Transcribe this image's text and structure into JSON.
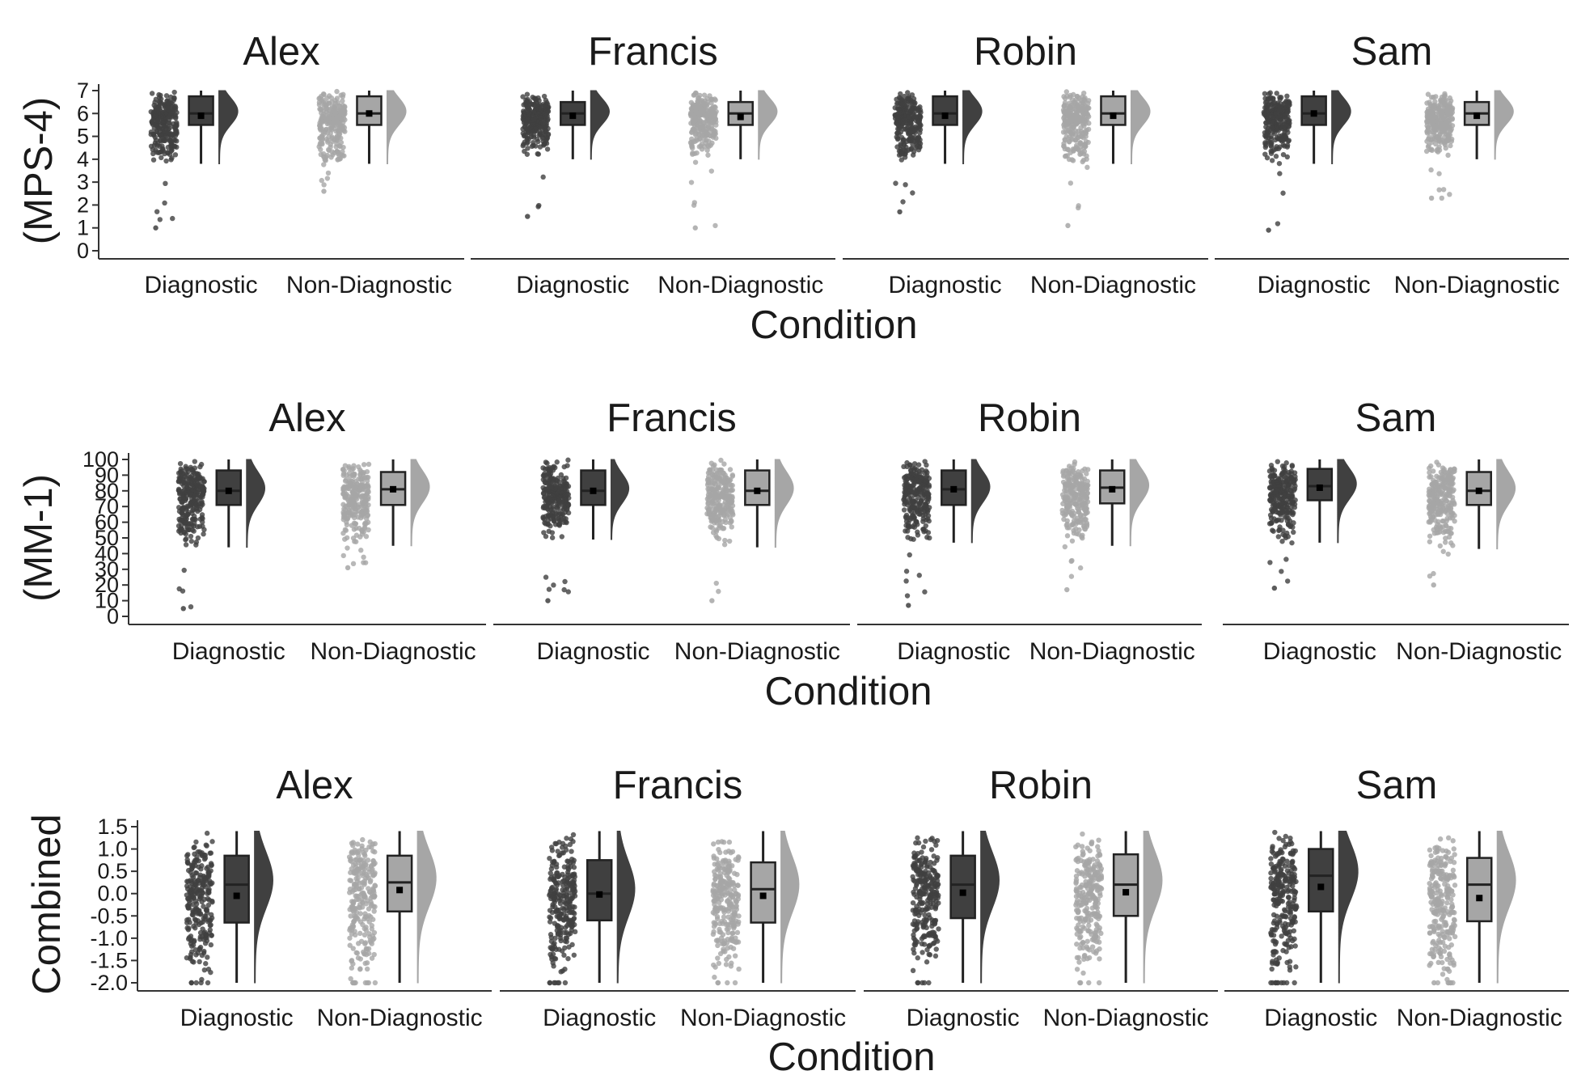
{
  "chart_data": [
    {
      "type": "raincloud",
      "ylabel": "(MPS-4)",
      "xlabel": "Condition",
      "ylim": [
        0,
        7
      ],
      "yticks": [
        0,
        1,
        2,
        3,
        4,
        5,
        6,
        7
      ],
      "yticklabels": [
        "0",
        "1",
        "2",
        "3",
        "4",
        "5",
        "6",
        "7"
      ],
      "categories": [
        "Diagnostic",
        "Non-Diagnostic"
      ],
      "facets": [
        {
          "name": "Alex",
          "groups": [
            {
              "category": "Diagnostic",
              "whisker_low": 3.8,
              "q1": 5.5,
              "median": 6.0,
              "q3": 6.75,
              "whisker_high": 7.0,
              "mean": 5.9,
              "min": 1.0,
              "max": 7.0
            },
            {
              "category": "Non-Diagnostic",
              "whisker_low": 3.8,
              "q1": 5.5,
              "median": 6.0,
              "q3": 6.75,
              "whisker_high": 7.0,
              "mean": 6.0,
              "min": 2.6,
              "max": 7.0
            }
          ]
        },
        {
          "name": "Francis",
          "groups": [
            {
              "category": "Diagnostic",
              "whisker_low": 4.0,
              "q1": 5.5,
              "median": 6.0,
              "q3": 6.5,
              "whisker_high": 7.0,
              "mean": 5.9,
              "min": 1.5,
              "max": 7.0
            },
            {
              "category": "Non-Diagnostic",
              "whisker_low": 4.0,
              "q1": 5.5,
              "median": 6.0,
              "q3": 6.5,
              "whisker_high": 7.0,
              "mean": 5.85,
              "min": 1.0,
              "max": 7.0
            }
          ]
        },
        {
          "name": "Robin",
          "groups": [
            {
              "category": "Diagnostic",
              "whisker_low": 3.8,
              "q1": 5.5,
              "median": 6.0,
              "q3": 6.75,
              "whisker_high": 7.0,
              "mean": 5.9,
              "min": 1.7,
              "max": 7.0
            },
            {
              "category": "Non-Diagnostic",
              "whisker_low": 3.8,
              "q1": 5.5,
              "median": 6.0,
              "q3": 6.75,
              "whisker_high": 7.0,
              "mean": 5.9,
              "min": 1.1,
              "max": 7.0
            }
          ]
        },
        {
          "name": "Sam",
          "groups": [
            {
              "category": "Diagnostic",
              "whisker_low": 3.8,
              "q1": 5.5,
              "median": 6.0,
              "q3": 6.75,
              "whisker_high": 7.0,
              "mean": 6.0,
              "min": 0.9,
              "max": 7.0
            },
            {
              "category": "Non-Diagnostic",
              "whisker_low": 4.0,
              "q1": 5.5,
              "median": 6.0,
              "q3": 6.5,
              "whisker_high": 7.0,
              "mean": 5.9,
              "min": 2.3,
              "max": 7.0
            }
          ]
        }
      ]
    },
    {
      "type": "raincloud",
      "ylabel": "(MM-1)",
      "xlabel": "Condition",
      "ylim": [
        0,
        100
      ],
      "yticks": [
        0,
        10,
        20,
        30,
        40,
        50,
        60,
        70,
        80,
        90,
        100
      ],
      "yticklabels": [
        "0",
        "10",
        "20",
        "30",
        "40",
        "50",
        "60",
        "70",
        "80",
        "90",
        "100"
      ],
      "categories": [
        "Diagnostic",
        "Non-Diagnostic"
      ],
      "facets": [
        {
          "name": "Alex",
          "groups": [
            {
              "category": "Diagnostic",
              "whisker_low": 44,
              "q1": 71,
              "median": 80,
              "q3": 93,
              "whisker_high": 100,
              "mean": 80,
              "min": 5,
              "max": 100
            },
            {
              "category": "Non-Diagnostic",
              "whisker_low": 45,
              "q1": 71,
              "median": 81,
              "q3": 92,
              "whisker_high": 100,
              "mean": 81,
              "min": 31,
              "max": 100
            }
          ]
        },
        {
          "name": "Francis",
          "groups": [
            {
              "category": "Diagnostic",
              "whisker_low": 49,
              "q1": 71,
              "median": 80,
              "q3": 93,
              "whisker_high": 100,
              "mean": 80,
              "min": 10,
              "max": 100
            },
            {
              "category": "Non-Diagnostic",
              "whisker_low": 44,
              "q1": 71,
              "median": 80,
              "q3": 93,
              "whisker_high": 100,
              "mean": 80,
              "min": 10,
              "max": 100
            }
          ]
        },
        {
          "name": "Robin",
          "groups": [
            {
              "category": "Diagnostic",
              "whisker_low": 47,
              "q1": 71,
              "median": 81,
              "q3": 93,
              "whisker_high": 100,
              "mean": 81,
              "min": 7,
              "max": 100
            },
            {
              "category": "Non-Diagnostic",
              "whisker_low": 45,
              "q1": 72,
              "median": 82,
              "q3": 93,
              "whisker_high": 100,
              "mean": 81,
              "min": 17,
              "max": 100
            }
          ]
        },
        {
          "name": "Sam",
          "groups": [
            {
              "category": "Diagnostic",
              "whisker_low": 47,
              "q1": 74,
              "median": 83,
              "q3": 94,
              "whisker_high": 100,
              "mean": 82,
              "min": 18,
              "max": 100
            },
            {
              "category": "Non-Diagnostic",
              "whisker_low": 43,
              "q1": 71,
              "median": 80,
              "q3": 92,
              "whisker_high": 100,
              "mean": 80,
              "min": 20,
              "max": 100
            }
          ]
        }
      ]
    },
    {
      "type": "raincloud",
      "ylabel": "Combined",
      "xlabel": "Condition",
      "ylim": [
        -2.0,
        1.5
      ],
      "yticks": [
        -2.0,
        -1.5,
        -1.0,
        -0.5,
        0.0,
        0.5,
        1.0,
        1.5
      ],
      "yticklabels": [
        "-2.0",
        "-1.5",
        "-1.0",
        "-0.5",
        "0.0",
        "0.5",
        "1.0",
        "1.5"
      ],
      "categories": [
        "Diagnostic",
        "Non-Diagnostic"
      ],
      "facets": [
        {
          "name": "Alex",
          "groups": [
            {
              "category": "Diagnostic",
              "whisker_low": -2.0,
              "q1": -0.65,
              "median": 0.2,
              "q3": 0.85,
              "whisker_high": 1.4,
              "mean": -0.05,
              "min": -2.0,
              "max": 1.4
            },
            {
              "category": "Non-Diagnostic",
              "whisker_low": -2.0,
              "q1": -0.4,
              "median": 0.25,
              "q3": 0.85,
              "whisker_high": 1.4,
              "mean": 0.08,
              "min": -2.0,
              "max": 1.4
            }
          ]
        },
        {
          "name": "Francis",
          "groups": [
            {
              "category": "Diagnostic",
              "whisker_low": -2.0,
              "q1": -0.6,
              "median": 0.0,
              "q3": 0.75,
              "whisker_high": 1.4,
              "mean": -0.02,
              "min": -2.0,
              "max": 1.4
            },
            {
              "category": "Non-Diagnostic",
              "whisker_low": -2.0,
              "q1": -0.65,
              "median": 0.1,
              "q3": 0.7,
              "whisker_high": 1.4,
              "mean": -0.05,
              "min": -2.0,
              "max": 1.4
            }
          ]
        },
        {
          "name": "Robin",
          "groups": [
            {
              "category": "Diagnostic",
              "whisker_low": -2.0,
              "q1": -0.55,
              "median": 0.2,
              "q3": 0.85,
              "whisker_high": 1.4,
              "mean": 0.02,
              "min": -2.0,
              "max": 1.4
            },
            {
              "category": "Non-Diagnostic",
              "whisker_low": -2.0,
              "q1": -0.5,
              "median": 0.2,
              "q3": 0.88,
              "whisker_high": 1.4,
              "mean": 0.03,
              "min": -2.0,
              "max": 1.4
            }
          ]
        },
        {
          "name": "Sam",
          "groups": [
            {
              "category": "Diagnostic",
              "whisker_low": -2.0,
              "q1": -0.4,
              "median": 0.4,
              "q3": 1.0,
              "whisker_high": 1.4,
              "mean": 0.15,
              "min": -2.0,
              "max": 1.4
            },
            {
              "category": "Non-Diagnostic",
              "whisker_low": -2.0,
              "q1": -0.62,
              "median": 0.2,
              "q3": 0.8,
              "whisker_high": 1.4,
              "mean": -0.1,
              "min": -2.0,
              "max": 1.4
            }
          ]
        }
      ]
    }
  ],
  "colors": {
    "Diagnostic": "#404040",
    "Non-Diagnostic": "#a6a6a6",
    "box_outline": "#222222",
    "mean_marker": "#000000"
  }
}
